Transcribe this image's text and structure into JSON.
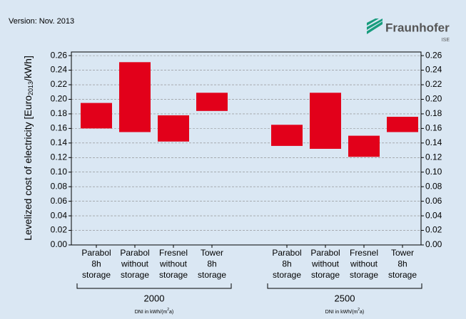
{
  "header": {
    "version": "Version: Nov. 2013",
    "logo": "Fraunhofer",
    "logo_sub": "ISE"
  },
  "chart_data": {
    "type": "range-bar",
    "y_label": [
      "Levelized cost of electricity [Euro",
      "2013",
      "/kWh]"
    ],
    "categories": [
      [
        "Parabol",
        "8h",
        "storage"
      ],
      [
        "Parabol",
        "without",
        "storage"
      ],
      [
        "Fresnel",
        "without",
        "storage"
      ],
      [
        "Tower",
        "8h",
        "storage"
      ],
      [
        "Parabol",
        "8h",
        "storage"
      ],
      [
        "Parabol",
        "without",
        "storage"
      ],
      [
        "Fresnel",
        "without",
        "storage"
      ],
      [
        "Tower",
        "8h",
        "storage"
      ]
    ],
    "groups": [
      "2000",
      "2500"
    ],
    "group_sublabel": [
      "DNI in kWh/(m",
      "2",
      "a)"
    ],
    "low": [
      0.16,
      0.155,
      0.142,
      0.184,
      0.136,
      0.132,
      0.121,
      0.155
    ],
    "high": [
      0.195,
      0.251,
      0.178,
      0.209,
      0.165,
      0.209,
      0.15,
      0.176
    ],
    "color": "#e2001a",
    "ylim": [
      0,
      0.265
    ],
    "yticks": [
      {
        "value": 0,
        "label": "0.00"
      },
      {
        "value": 0.02,
        "label": "0.02"
      },
      {
        "value": 0.04,
        "label": "0.04"
      },
      {
        "value": 0.06,
        "label": "0.06"
      },
      {
        "value": 0.08,
        "label": "0.08"
      },
      {
        "value": 0.1,
        "label": "0.10"
      },
      {
        "value": 0.12,
        "label": "0.12"
      },
      {
        "value": 0.14,
        "label": "0.14"
      },
      {
        "value": 0.16,
        "label": "0.16"
      },
      {
        "value": 0.18,
        "label": "0.18"
      },
      {
        "value": 0.2,
        "label": "0.20"
      },
      {
        "value": 0.22,
        "label": "0.22"
      },
      {
        "value": 0.24,
        "label": "0.24"
      },
      {
        "value": 0.26,
        "label": "0.26"
      }
    ],
    "grid": true
  }
}
